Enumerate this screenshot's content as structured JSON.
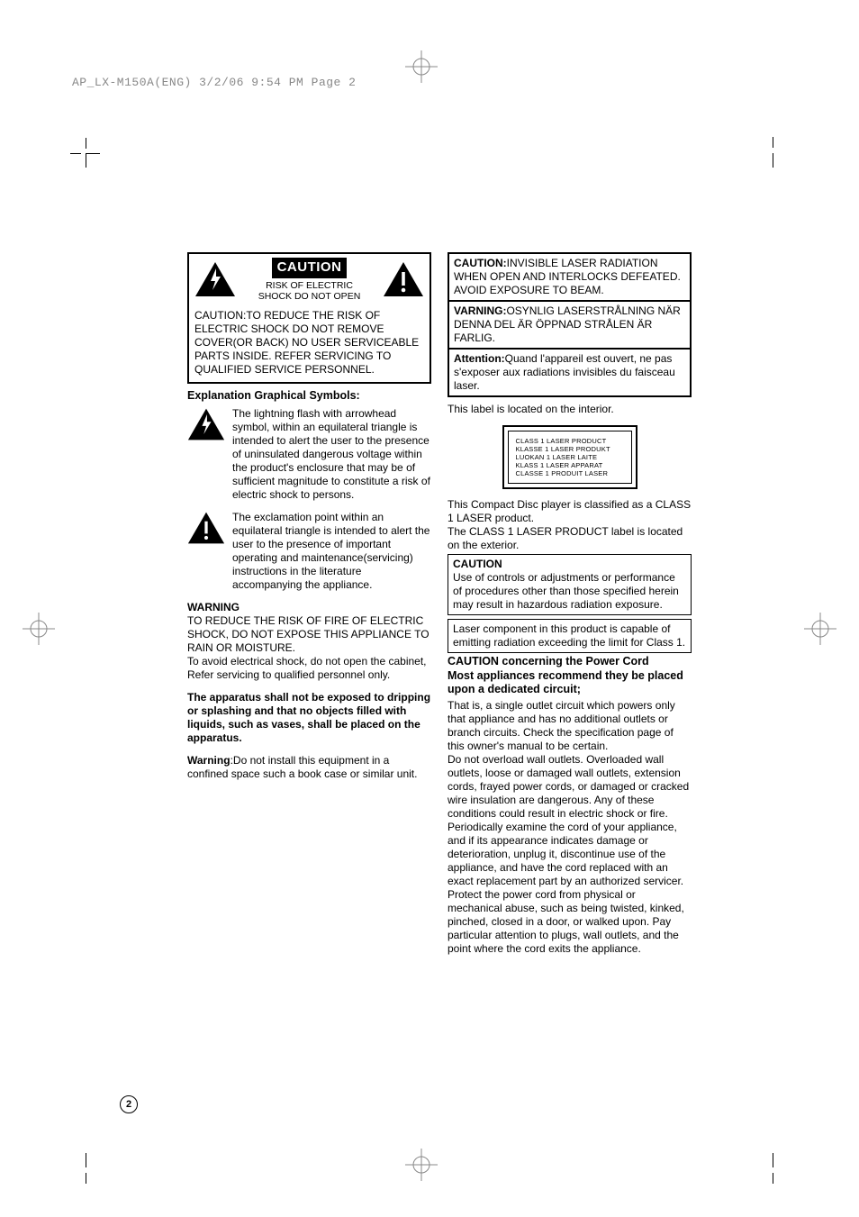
{
  "header": "AP_LX-M150A(ENG)  3/2/06  9:54 PM  Page 2",
  "pageNumber": "2",
  "cautionBox": {
    "title": "CAUTION",
    "subtitle1": "RISK OF ELECTRIC",
    "subtitle2": "SHOCK DO NOT OPEN",
    "body": "CAUTION:TO REDUCE THE RISK OF ELECTRIC SHOCK DO NOT REMOVE COVER(OR BACK) NO USER SERVICEABLE PARTS INSIDE. REFER SERVICING TO QUALIFIED SERVICE PERSONNEL."
  },
  "explHeading": "Explanation Graphical Symbols:",
  "sym1": "The lightning flash with arrowhead symbol, within an  equilateral  triangle is intended to alert the user to the presence of uninsulated dangerous voltage within the product's enclosure that may be of sufficient magnitude to constitute a risk of electric shock to persons.",
  "sym2": "The exclamation point within an equilateral triangle is intended to alert the user to the presence of important operating and maintenance(servicing) instructions in the literature accompanying the appliance.",
  "warnHead": "WARNING",
  "warnBody1": "TO REDUCE THE RISK OF FIRE OF ELECTRIC SHOCK, DO NOT EXPOSE THIS APPLIANCE TO RAIN OR MOISTURE.",
  "warnBody2": "To avoid electrical shock, do not open the cabinet, Refer servicing to qualified   personnel only.",
  "appPara": "The apparatus shall not be exposed to dripping or splashing and that no objects filled with liquids, such as vases, shall be placed on the apparatus.",
  "warn2Head": "Warning",
  "warn2Body": ":Do not install this equipment in a confined space such a book case or similar unit.",
  "lang": {
    "en": {
      "head": "CAUTION:",
      "body": "INVISIBLE LASER RADIATION WHEN OPEN AND INTERLOCKS DEFEATED. AVOID EXPOSURE TO BEAM."
    },
    "sv": {
      "head": "VARNING:",
      "body": "OSYNLIG LASERSTRÅLNING NÄR DENNA DEL ÄR ÖPPNAD STRÅLEN ÄR FARLIG."
    },
    "fr": {
      "head": "Attention:",
      "body": "Quand l'appareil est ouvert, ne pas s'exposer aux radiations invisibles du faisceau laser."
    }
  },
  "labelNote": "This label is located on the interior.",
  "laserLines": [
    "CLASS  1   LASER  PRODUCT",
    "KLASSE 1  LASER  PRODUKT",
    "LUOKAN 1 LASER  LAITE",
    "KLASS  1    LASER  APPARAT",
    "CLASSE 1  PRODUIT LASER"
  ],
  "classNote1": "This Compact Disc  player is classified as a CLASS 1 LASER product.",
  "classNote2": "The CLASS 1 LASER PRODUCT label is located on the exterior.",
  "caut2Head": "CAUTION",
  "caut2Body": "Use of controls or adjustments or performance of procedures other than those specified herein may result in hazardous radiation exposure.",
  "laserComp": "Laser component in this product is capable of emitting radiation exceeding the limit for Class 1.",
  "pcHead": "CAUTION concerning the Power Cord",
  "pcSub": "Most appliances recommend they be placed upon a dedicated circuit;",
  "pcP1": "That is, a single outlet circuit which powers only that appliance and has no additional outlets or branch circuits. Check the specification page of this owner's manual to be certain.",
  "pcP2": "Do not overload wall outlets. Overloaded wall outlets, loose or damaged wall outlets, extension cords, frayed power cords, or damaged or cracked wire insulation are dangerous. Any of these conditions could result in electric shock or fire. Periodically examine the cord of your appliance, and if its appearance indicates damage or deterioration, unplug it, discontinue use of the appliance, and have the cord replaced with an exact replacement part by an authorized servicer.",
  "pcP3": "Protect the power cord from physical or mechanical abuse, such as being twisted, kinked, pinched, closed in a door, or walked upon. Pay particular attention to plugs, wall outlets, and the point where the cord exits the appliance."
}
